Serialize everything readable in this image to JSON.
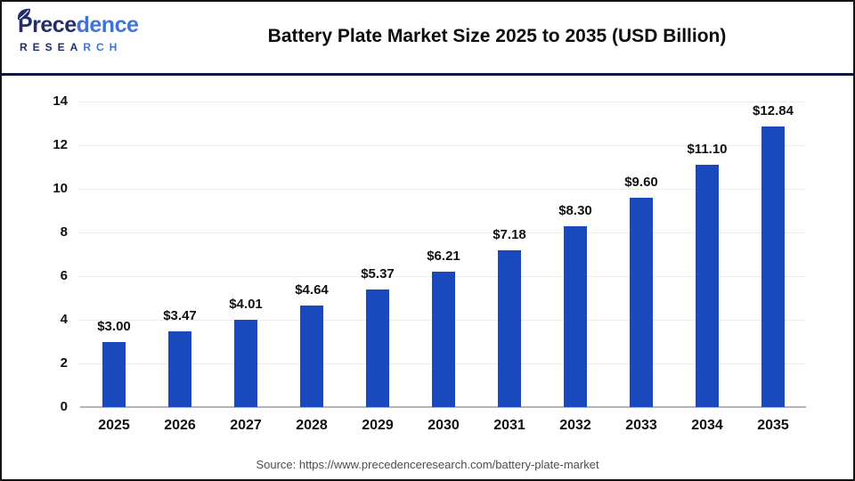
{
  "logo": {
    "brand_dark": "Prece",
    "brand_light": "dence",
    "research_dark": "RESEA",
    "research_light": "RCH"
  },
  "header": {
    "title": "Battery Plate Market Size 2025 to 2035 (USD Billion)"
  },
  "chart_data": {
    "type": "bar",
    "title": "Battery Plate Market Size 2025 to 2035 (USD Billion)",
    "categories": [
      "2025",
      "2026",
      "2027",
      "2028",
      "2029",
      "2030",
      "2031",
      "2032",
      "2033",
      "2034",
      "2035"
    ],
    "values": [
      3.0,
      3.47,
      4.01,
      4.64,
      5.37,
      6.21,
      7.18,
      8.3,
      9.6,
      11.1,
      12.84
    ],
    "value_labels": [
      "$3.00",
      "$3.47",
      "$4.01",
      "$4.64",
      "$5.37",
      "$6.21",
      "$7.18",
      "$8.30",
      "$9.60",
      "$11.10",
      "$12.84"
    ],
    "unit": "USD Billion",
    "xlabel": "",
    "ylabel": "",
    "ylim": [
      0,
      14
    ],
    "ytick_step": 2,
    "grid": true,
    "legend": "none",
    "bar_color": "#1a49bd"
  },
  "footer": {
    "source": "Source: https://www.precedenceresearch.com/battery-plate-market"
  },
  "colors": {
    "bar": "#1a49bd",
    "separator": "#0e1342",
    "logo_dark": "#232e68",
    "logo_light": "#3f73da",
    "gridline": "#ececec",
    "axis_line": "#b3b3b3",
    "label_text": "#111111",
    "source_text": "#4d4d4d"
  }
}
